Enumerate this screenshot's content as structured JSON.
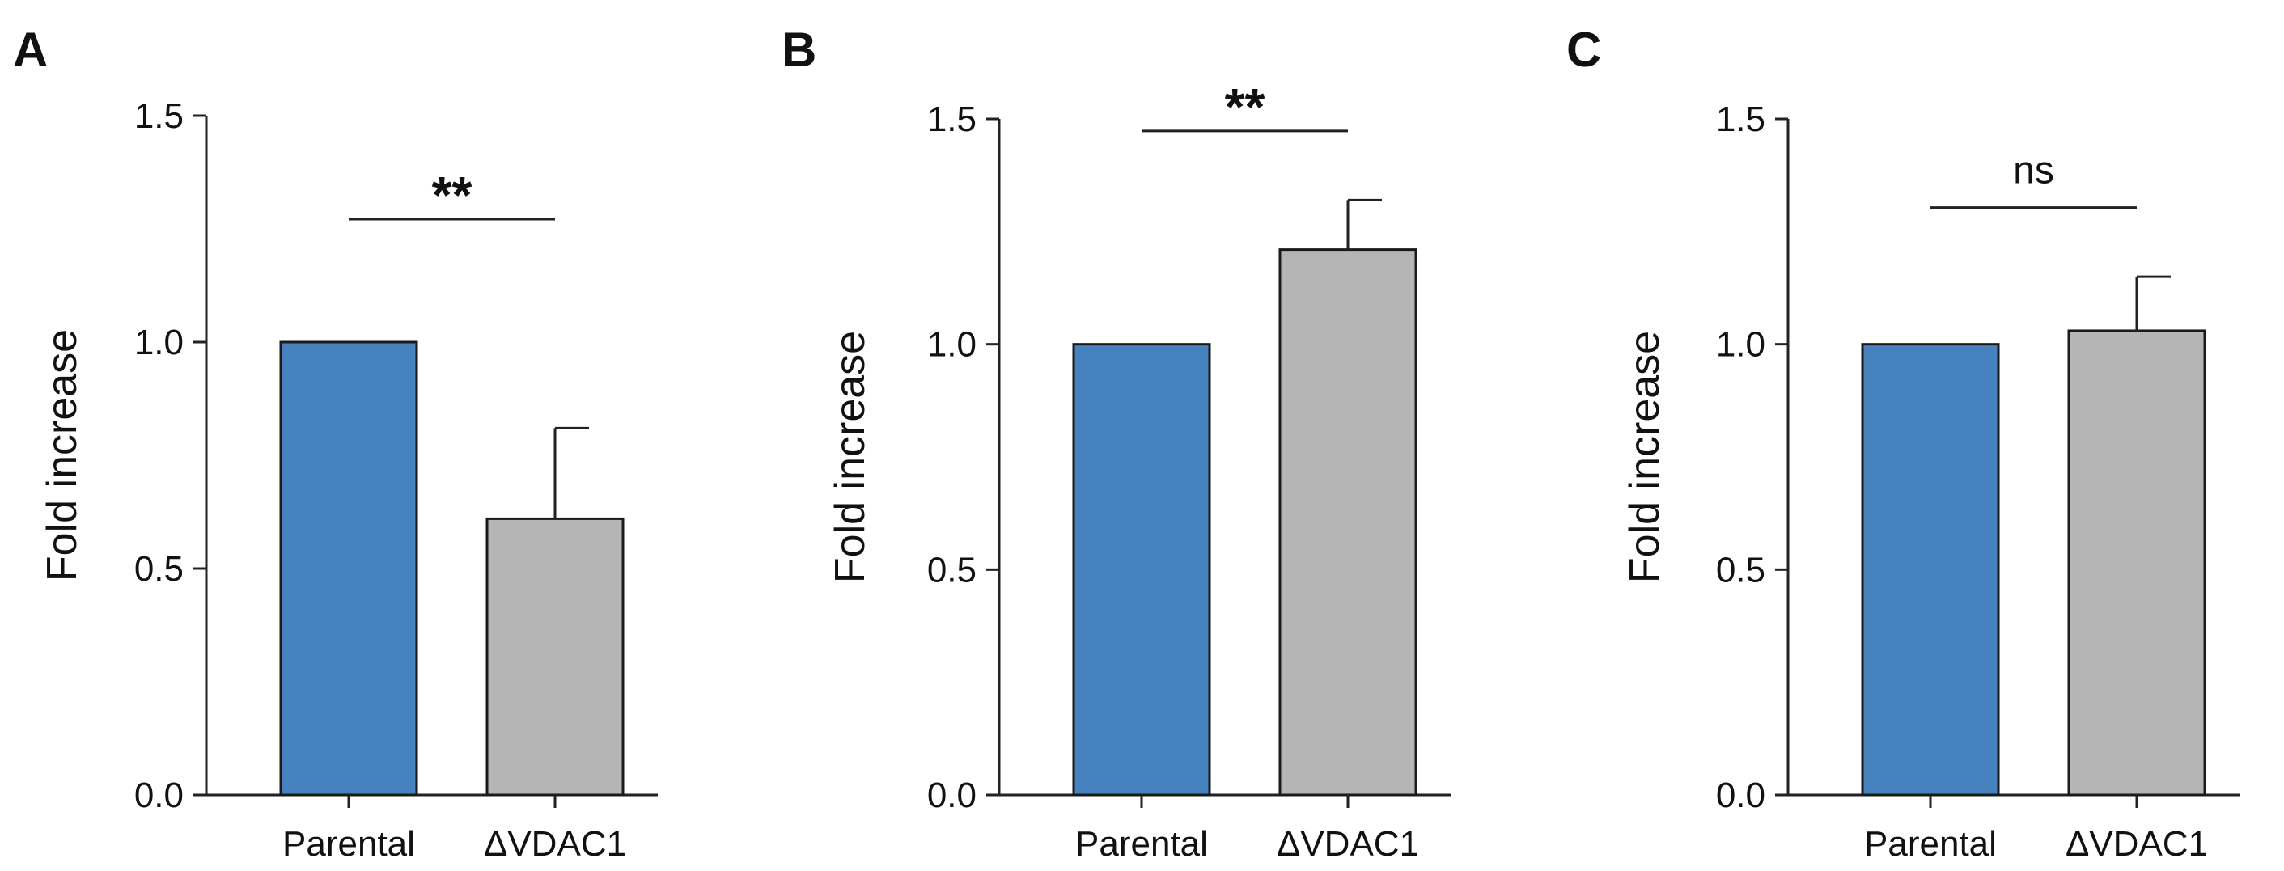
{
  "chart_data": [
    {
      "type": "bar",
      "panel": "A",
      "categories": [
        "Parental",
        "ΔVDAC1"
      ],
      "values": [
        1.0,
        0.61
      ],
      "errors": [
        0,
        0.2
      ],
      "ylabel": "Fold increase",
      "xlabel": "",
      "ylim": [
        0,
        1.5
      ],
      "yticks": [
        "0.0",
        "0.5",
        "1.0",
        "1.5"
      ],
      "significance": "**",
      "colors": [
        "#4682be",
        "#b4b5b4"
      ]
    },
    {
      "type": "bar",
      "panel": "B",
      "categories": [
        "Parental",
        "ΔVDAC1"
      ],
      "values": [
        1.0,
        1.21
      ],
      "errors": [
        0,
        0.11
      ],
      "ylabel": "Fold increase",
      "xlabel": "",
      "ylim": [
        0,
        1.5
      ],
      "yticks": [
        "0.0",
        "0.5",
        "1.0",
        "1.5"
      ],
      "significance": "**",
      "colors": [
        "#4682be",
        "#b4b5b4"
      ]
    },
    {
      "type": "bar",
      "panel": "C",
      "categories": [
        "Parental",
        "ΔVDAC1"
      ],
      "values": [
        1.0,
        1.03
      ],
      "errors": [
        0,
        0.12
      ],
      "ylabel": "Fold increase",
      "xlabel": "",
      "ylim": [
        0,
        1.5
      ],
      "yticks": [
        "0.0",
        "0.5",
        "1.0",
        "1.5"
      ],
      "significance": "ns",
      "colors": [
        "#4682be",
        "#b4b5b4"
      ]
    }
  ]
}
